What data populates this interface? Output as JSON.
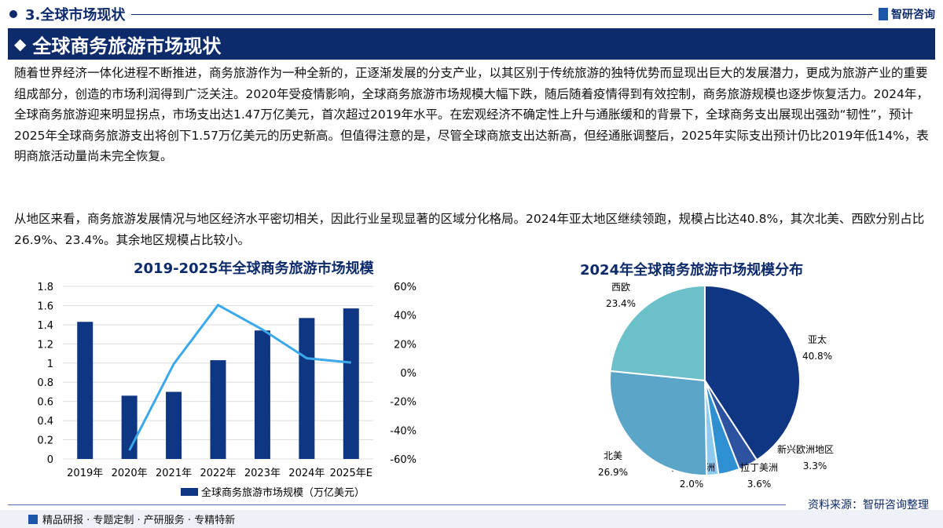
{
  "header": {
    "section": "3.全球市场现状",
    "brand": "智研咨询"
  },
  "banner": {
    "title": "全球商务旅游市场现状"
  },
  "paragraphs": [
    "随着世界经济一体化进程不断推进，商务旅游作为一种全新的，正逐渐发展的分支产业，以其区别于传统旅游的独特优势而显现出巨大的发展潜力，更成为旅游产业的重要组成部分，创造的市场利润得到广泛关注。2020年受疫情影响，全球商务旅游市场规模大幅下跌，随后随着疫情得到有效控制，商务旅游规模也逐步恢复活力。2024年，全球商务旅游迎来明显拐点，市场支出达1.47万亿美元，首次超过2019年水平。在宏观经济不确定性上升与通胀缓和的背景下，全球商务支出展现出强劲“韧性”，预计2025年全球商务旅游支出将创下1.57万亿美元的历史新高。但值得注意的是，尽管全球商旅支出达新高，但经通胀调整后，2025年实际支出预计仍比2019年低14%，表明商旅活动量尚未完全恢复。",
    "从地区来看，商务旅游发展情况与地区经济水平密切相关，因此行业呈现显著的区域分化格局。2024年亚太地区继续领跑，规模占比达40.8%，其次北美、西欧分别占比26.9%、23.4%。其余地区规模占比较小。"
  ],
  "chart_data": [
    {
      "type": "bar+line",
      "title": "2019-2025年全球商务旅游市场规模",
      "categories": [
        "2019年",
        "2020年",
        "2021年",
        "2022年",
        "2023年",
        "2024年",
        "2025年E"
      ],
      "series": [
        {
          "name": "全球商务旅游市场规模（万亿美元）",
          "type": "bar",
          "axis": "left",
          "values": [
            1.43,
            0.66,
            0.7,
            1.03,
            1.34,
            1.47,
            1.57
          ],
          "color": "#0f3682"
        },
        {
          "type": "line",
          "axis": "right",
          "values": [
            null,
            -54,
            6,
            47,
            30,
            10,
            7
          ],
          "color": "#3aa8ea"
        }
      ],
      "ylim": [
        0,
        1.8
      ],
      "yticks": [
        "0",
        "0.2",
        "0.4",
        "0.6",
        "0.8",
        "1",
        "1.2",
        "1.4",
        "1.6",
        "1.8"
      ],
      "y2lim": [
        -60,
        60
      ],
      "y2ticks": [
        "-60%",
        "-40%",
        "-20%",
        "0%",
        "20%",
        "40%",
        "60%"
      ],
      "grid": true,
      "legend": "bottom"
    },
    {
      "type": "pie",
      "title": "2024年全球商务旅游市场规模分布",
      "slices": [
        {
          "label": "亚太",
          "value": 40.8,
          "text": "40.8%",
          "color": "#0f3682"
        },
        {
          "label": "新兴欧洲地区",
          "value": 3.3,
          "text": "3.3%",
          "color": "#2c52a0"
        },
        {
          "label": "拉丁美洲",
          "value": 3.6,
          "text": "3.6%",
          "color": "#2e90d0"
        },
        {
          "label": "中东和非洲",
          "value": 2.0,
          "text": "2.0%",
          "color": "#8ccbef"
        },
        {
          "label": "北美",
          "value": 26.9,
          "text": "26.9%",
          "color": "#5ba6c8"
        },
        {
          "label": "西欧",
          "value": 23.4,
          "text": "23.4%",
          "color": "#6cc0c9"
        }
      ]
    }
  ],
  "source": "资料来源：智研咨询整理",
  "footer": "精品研报 · 专题定制 · 产研服务 · 专精特新"
}
